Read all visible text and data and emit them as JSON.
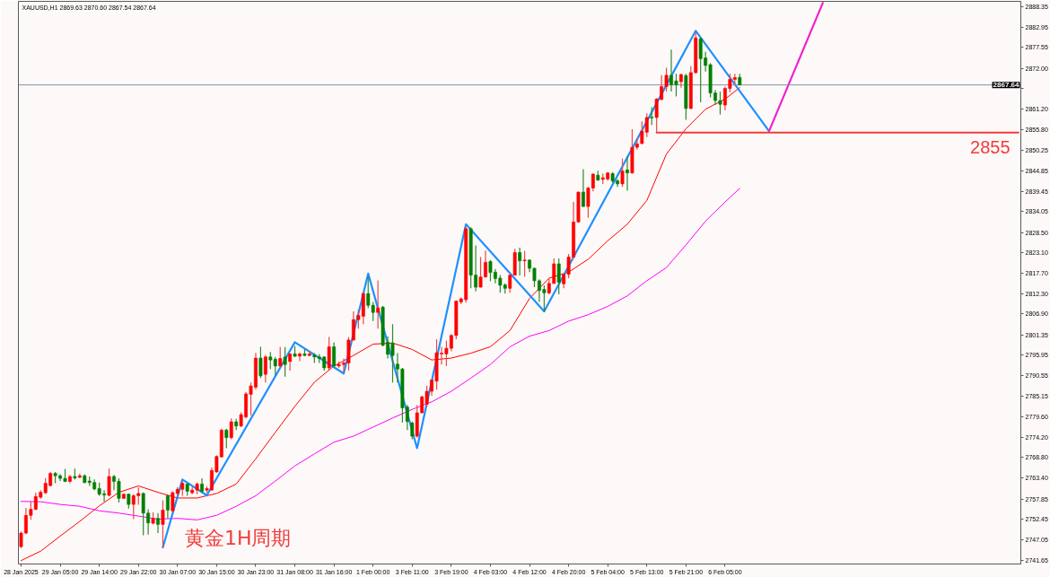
{
  "chart_data": {
    "type": "candlestick",
    "title": "XAUUSD,H1 2869.63 2870.60 2867.54 2867.64",
    "categories": [
      "28 Jan 2025",
      null,
      null,
      null,
      null,
      null,
      null,
      null,
      "29 Jan 05:00",
      null,
      null,
      null,
      null,
      null,
      null,
      null,
      "29 Jan 14:00",
      null,
      null,
      null,
      null,
      null,
      null,
      null,
      "29 Jan 22:00",
      null,
      null,
      null,
      null,
      null,
      null,
      null,
      "30 Jan 07:00",
      null,
      null,
      null,
      null,
      null,
      null,
      null,
      "30 Jan 15:00",
      null,
      null,
      null,
      null,
      null,
      null,
      null,
      "30 Jan 23:00",
      null,
      null,
      null,
      null,
      null,
      null,
      null,
      "31 Jan 08:00",
      null,
      null,
      null,
      null,
      null,
      null,
      null,
      "31 Jan 16:00",
      null,
      null,
      null,
      null,
      null,
      null,
      null,
      "1 Feb 00:00",
      null,
      null,
      null,
      null,
      null,
      null,
      null,
      "3 Feb 11:00",
      null,
      null,
      null,
      null,
      null,
      null,
      null,
      "3 Feb 19:00",
      null,
      null,
      null,
      null,
      null,
      null,
      null,
      "4 Feb 03:00",
      null,
      null,
      null,
      null,
      null,
      null,
      null,
      "4 Feb 12:00",
      null,
      null,
      null,
      null,
      null,
      null,
      null,
      "4 Feb 20:00",
      null,
      null,
      null,
      null,
      null,
      null,
      null,
      "5 Feb 04:00",
      null,
      null,
      null,
      null,
      null,
      null,
      null,
      "5 Feb 13:00",
      null,
      null,
      null,
      null,
      null,
      null,
      null,
      "5 Feb 21:00",
      null,
      null,
      null,
      null,
      null,
      null,
      null,
      "6 Feb 05:00",
      null,
      null,
      null,
      null,
      null,
      null,
      null,
      null,
      null,
      null,
      null,
      null,
      null,
      null,
      null,
      null,
      null,
      null,
      null,
      null,
      null,
      null,
      null,
      null,
      null,
      null,
      null,
      null,
      null,
      null,
      null,
      null,
      null,
      null,
      null,
      null,
      null,
      null,
      null,
      null,
      null,
      null,
      null,
      null,
      null,
      null,
      null,
      null,
      null,
      null,
      null,
      null,
      null,
      null,
      null,
      null,
      null,
      null,
      null,
      null
    ],
    "ohlc": [
      [
        2745.2,
        2749.2,
        2744.8,
        2748.8
      ],
      [
        2748.8,
        2755.5,
        2748.5,
        2753.5
      ],
      [
        2753.5,
        2757.1,
        2752.3,
        2755.1
      ],
      [
        2755.1,
        2759.5,
        2754.9,
        2758.5
      ],
      [
        2758.3,
        2760.2,
        2757.9,
        2759.6
      ],
      [
        2759.5,
        2763.4,
        2759.1,
        2762.0
      ],
      [
        2761.4,
        2765.0,
        2761.2,
        2764.6
      ],
      [
        2764.6,
        2765.0,
        2762.0,
        2764.0
      ],
      [
        2764.0,
        2764.4,
        2762.6,
        2763.3
      ],
      [
        2763.3,
        2765.8,
        2762.3,
        2762.5
      ],
      [
        2762.5,
        2764.2,
        2762.0,
        2763.8
      ],
      [
        2763.8,
        2765.9,
        2763.0,
        2763.4
      ],
      [
        2763.6,
        2764.6,
        2763.3,
        2764.0
      ],
      [
        2764.0,
        2764.4,
        2762.0,
        2762.2
      ],
      [
        2762.6,
        2763.8,
        2761.3,
        2762.2
      ],
      [
        2762.2,
        2763.0,
        2760.2,
        2760.5
      ],
      [
        2760.6,
        2762.2,
        2758.7,
        2759.1
      ],
      [
        2759.2,
        2760.2,
        2757.1,
        2758.9
      ],
      [
        2758.8,
        2765.9,
        2758.5,
        2763.8
      ],
      [
        2763.8,
        2764.2,
        2760.2,
        2762.5
      ],
      [
        2762.5,
        2763.3,
        2756.9,
        2758.0
      ],
      [
        2758.0,
        2759.3,
        2757.9,
        2759.1
      ],
      [
        2759.1,
        2759.3,
        2755.3,
        2756.4
      ],
      [
        2756.4,
        2759.1,
        2752.5,
        2758.7
      ],
      [
        2758.7,
        2760.9,
        2756.3,
        2759.3
      ],
      [
        2759.3,
        2759.6,
        2748.2,
        2754.1
      ],
      [
        2754.1,
        2755.1,
        2748.4,
        2751.5
      ],
      [
        2751.4,
        2754.3,
        2751.1,
        2752.7
      ],
      [
        2752.7,
        2754.1,
        2748.8,
        2751.1
      ],
      [
        2751.1,
        2757.5,
        2744.8,
        2754.9
      ],
      [
        2758.7,
        2758.8,
        2752.7,
        2754.9
      ],
      [
        2754.7,
        2759.9,
        2754.3,
        2759.5
      ],
      [
        2759.3,
        2761.0,
        2758.7,
        2760.4
      ],
      [
        2760.4,
        2762.6,
        2758.7,
        2762.0
      ],
      [
        2761.8,
        2762.0,
        2758.7,
        2759.9
      ],
      [
        2759.5,
        2761.0,
        2759.1,
        2760.2
      ],
      [
        2760.2,
        2762.2,
        2759.1,
        2761.8
      ],
      [
        2761.8,
        2763.3,
        2759.5,
        2759.9
      ],
      [
        2760.2,
        2761.2,
        2759.5,
        2760.6
      ],
      [
        2760.2,
        2766.2,
        2760.1,
        2765.4
      ],
      [
        2765.0,
        2769.4,
        2764.8,
        2769.1
      ],
      [
        2769.0,
        2776.5,
        2768.8,
        2776.1
      ],
      [
        2776.1,
        2776.4,
        2771.3,
        2774.1
      ],
      [
        2774.1,
        2779.2,
        2773.7,
        2778.3
      ],
      [
        2778.3,
        2779.1,
        2776.1,
        2777.2
      ],
      [
        2777.2,
        2780.8,
        2776.9,
        2780.2
      ],
      [
        2779.6,
        2786.2,
        2779.2,
        2785.7
      ],
      [
        2785.6,
        2788.7,
        2780.0,
        2787.8
      ],
      [
        2787.5,
        2796.6,
        2786.8,
        2795.2
      ],
      [
        2795.2,
        2798.2,
        2789.9,
        2790.5
      ],
      [
        2790.9,
        2795.9,
        2788.7,
        2795.5
      ],
      [
        2795.5,
        2796.8,
        2792.3,
        2794.7
      ],
      [
        2794.9,
        2795.5,
        2790.5,
        2793.1
      ],
      [
        2793.1,
        2798.1,
        2792.7,
        2795.1
      ],
      [
        2795.5,
        2798.1,
        2790.3,
        2793.5
      ],
      [
        2794.3,
        2796.5,
        2791.9,
        2796.3
      ],
      [
        2796.3,
        2798.4,
        2795.5,
        2795.7
      ],
      [
        2795.7,
        2796.7,
        2794.4,
        2796.3
      ],
      [
        2796.3,
        2797.6,
        2795.7,
        2795.9
      ],
      [
        2795.9,
        2797.1,
        2795.7,
        2796.3
      ],
      [
        2796.0,
        2796.5,
        2793.9,
        2795.5
      ],
      [
        2795.5,
        2796.3,
        2793.9,
        2795.1
      ],
      [
        2795.5,
        2795.7,
        2791.9,
        2792.6
      ],
      [
        2792.6,
        2800.8,
        2792.1,
        2798.2
      ],
      [
        2798.2,
        2799.4,
        2792.7,
        2793.1
      ],
      [
        2793.1,
        2794.3,
        2792.6,
        2793.5
      ],
      [
        2793.5,
        2795.1,
        2791.3,
        2793.9
      ],
      [
        2793.9,
        2800.8,
        2791.9,
        2800.0
      ],
      [
        2800.0,
        2807.6,
        2799.8,
        2805.4
      ],
      [
        2805.4,
        2808.1,
        2803.0,
        2806.5
      ],
      [
        2806.3,
        2812.6,
        2804.2,
        2812.3
      ],
      [
        2812.3,
        2816.8,
        2808.5,
        2809.2
      ],
      [
        2809.2,
        2810.1,
        2805.0,
        2807.3
      ],
      [
        2807.3,
        2815.8,
        2803.0,
        2808.5
      ],
      [
        2808.7,
        2809.0,
        2798.3,
        2798.6
      ],
      [
        2799.4,
        2801.0,
        2795.1,
        2796.2
      ],
      [
        2799.2,
        2804.2,
        2788.7,
        2795.9
      ],
      [
        2793.6,
        2796.5,
        2788.7,
        2792.3
      ],
      [
        2792.3,
        2792.6,
        2778.1,
        2782.0
      ],
      [
        2782.2,
        2782.8,
        2776.1,
        2778.4
      ],
      [
        2778.0,
        2778.4,
        2773.7,
        2774.5
      ],
      [
        2774.5,
        2782.8,
        2774.1,
        2780.7
      ],
      [
        2780.7,
        2785.2,
        2780.5,
        2784.9
      ],
      [
        2783.0,
        2787.9,
        2782.4,
        2786.4
      ],
      [
        2786.4,
        2789.5,
        2785.2,
        2789.4
      ],
      [
        2789.1,
        2800.2,
        2786.8,
        2796.6
      ],
      [
        2796.3,
        2798.2,
        2793.5,
        2796.5
      ],
      [
        2796.3,
        2799.8,
        2793.1,
        2797.8
      ],
      [
        2797.8,
        2801.6,
        2797.0,
        2801.2
      ],
      [
        2801.2,
        2810.5,
        2800.2,
        2810.3
      ],
      [
        2810.1,
        2811.3,
        2809.5,
        2810.9
      ],
      [
        2810.7,
        2829.9,
        2809.9,
        2829.5
      ],
      [
        2829.5,
        2829.9,
        2813.7,
        2817.2
      ],
      [
        2817.2,
        2825.1,
        2812.9,
        2814.0
      ],
      [
        2814.0,
        2822.0,
        2813.9,
        2816.7
      ],
      [
        2816.7,
        2823.7,
        2816.6,
        2820.6
      ],
      [
        2820.8,
        2821.2,
        2815.6,
        2817.9
      ],
      [
        2818.0,
        2818.8,
        2815.0,
        2816.3
      ],
      [
        2816.4,
        2817.2,
        2812.5,
        2814.5
      ],
      [
        2814.6,
        2815.0,
        2812.3,
        2813.7
      ],
      [
        2813.7,
        2817.4,
        2812.5,
        2817.2
      ],
      [
        2817.2,
        2824.2,
        2817.1,
        2823.2
      ],
      [
        2823.2,
        2824.5,
        2817.1,
        2821.0
      ],
      [
        2821.0,
        2823.6,
        2816.8,
        2821.2
      ],
      [
        2821.2,
        2821.3,
        2818.0,
        2819.0
      ],
      [
        2819.0,
        2819.2,
        2814.0,
        2815.7
      ],
      [
        2815.7,
        2816.1,
        2810.1,
        2813.1
      ],
      [
        2813.4,
        2814.5,
        2807.4,
        2812.5
      ],
      [
        2812.5,
        2816.4,
        2812.1,
        2815.0
      ],
      [
        2815.0,
        2821.6,
        2814.9,
        2820.2
      ],
      [
        2820.2,
        2821.6,
        2812.1,
        2815.3
      ],
      [
        2814.9,
        2817.6,
        2813.7,
        2817.4
      ],
      [
        2817.4,
        2822.8,
        2816.4,
        2822.0
      ],
      [
        2822.0,
        2836.6,
        2821.6,
        2831.3
      ],
      [
        2831.3,
        2839.4,
        2831.1,
        2839.2
      ],
      [
        2839.2,
        2845.3,
        2835.3,
        2835.4
      ],
      [
        2835.4,
        2840.6,
        2832.4,
        2840.3
      ],
      [
        2840.3,
        2844.2,
        2839.4,
        2844.0
      ],
      [
        2843.7,
        2844.9,
        2842.2,
        2842.4
      ],
      [
        2842.6,
        2844.1,
        2841.4,
        2843.0
      ],
      [
        2842.7,
        2844.5,
        2842.2,
        2844.3
      ],
      [
        2844.1,
        2844.5,
        2841.6,
        2842.2
      ],
      [
        2842.2,
        2842.6,
        2840.6,
        2841.4
      ],
      [
        2841.4,
        2848.1,
        2840.6,
        2844.8
      ],
      [
        2845.1,
        2848.7,
        2839.6,
        2844.3
      ],
      [
        2844.3,
        2855.9,
        2844.1,
        2851.1
      ],
      [
        2851.1,
        2853.5,
        2850.5,
        2852.0
      ],
      [
        2852.1,
        2858.0,
        2851.9,
        2855.4
      ],
      [
        2855.1,
        2860.1,
        2853.8,
        2859.0
      ],
      [
        2859.1,
        2861.7,
        2857.0,
        2858.9
      ],
      [
        2859.0,
        2864.1,
        2854.8,
        2863.9
      ],
      [
        2863.8,
        2870.2,
        2863.5,
        2867.2
      ],
      [
        2867.2,
        2872.2,
        2865.9,
        2870.2
      ],
      [
        2870.2,
        2877.0,
        2865.9,
        2867.7
      ],
      [
        2868.7,
        2870.6,
        2864.6,
        2867.7
      ],
      [
        2868.5,
        2870.6,
        2866.9,
        2870.4
      ],
      [
        2870.1,
        2870.6,
        2858.4,
        2861.4
      ],
      [
        2861.4,
        2872.6,
        2861.2,
        2870.9
      ],
      [
        2870.9,
        2881.7,
        2870.6,
        2880.1
      ],
      [
        2879.9,
        2880.1,
        2863.0,
        2874.6
      ],
      [
        2874.8,
        2876.4,
        2871.2,
        2872.8
      ],
      [
        2873.0,
        2873.4,
        2864.3,
        2865.5
      ],
      [
        2865.5,
        2866.3,
        2862.3,
        2863.5
      ],
      [
        2863.5,
        2865.9,
        2859.8,
        2862.5
      ],
      [
        2862.3,
        2867.2,
        2860.9,
        2866.7
      ],
      [
        2866.7,
        2870.6,
        2865.7,
        2869.1
      ],
      [
        2869.1,
        2870.6,
        2867.7,
        2869.6
      ],
      [
        2869.63,
        2870.6,
        2867.54,
        2867.64
      ],
      null,
      null,
      null,
      null,
      null,
      null,
      null,
      null,
      null,
      null,
      null,
      null,
      null,
      null,
      null,
      null,
      null,
      null,
      null,
      null,
      null,
      null,
      null,
      null,
      null,
      null,
      null,
      null,
      null,
      null,
      null,
      null,
      null,
      null,
      null,
      null,
      null,
      null,
      null,
      null,
      null,
      null,
      null,
      null,
      null,
      null,
      null,
      null,
      null,
      null,
      null,
      null,
      null,
      null,
      null,
      null,
      null
    ],
    "series": [
      {
        "type": "line",
        "color": "#ff0000",
        "values": [
          2741.5,
          null,
          null,
          null,
          2744.0,
          null,
          null,
          null,
          2748.0,
          null,
          null,
          null,
          2751.9,
          null,
          null,
          null,
          2756.0,
          null,
          null,
          null,
          2759.6,
          null,
          null,
          null,
          2761.3,
          null,
          null,
          null,
          2759.6,
          null,
          null,
          null,
          2758.1,
          null,
          null,
          null,
          2758.1,
          null,
          null,
          null,
          2759.3,
          null,
          null,
          null,
          2761.8,
          null,
          null,
          null,
          2768.5,
          null,
          null,
          null,
          2775.5,
          null,
          null,
          null,
          2782.4,
          null,
          null,
          null,
          2788.8,
          null,
          null,
          null,
          2793.1,
          null,
          null,
          null,
          2795.9,
          null,
          null,
          null,
          2798.9,
          null,
          null,
          null,
          2799.2,
          null,
          null,
          null,
          2797.5,
          null,
          null,
          null,
          2794.7,
          null,
          null,
          null,
          2795.2,
          null,
          null,
          null,
          2796.5,
          null,
          null,
          null,
          2798.2,
          null,
          null,
          null,
          2802.5,
          null,
          null,
          null,
          2811.0,
          null,
          null,
          null,
          2816.4,
          null,
          null,
          null,
          2818.0,
          null,
          null,
          null,
          2821.4,
          null,
          null,
          null,
          2826.3,
          null,
          null,
          null,
          2830.7,
          null,
          null,
          null,
          2837.0,
          null,
          null,
          null,
          2849.3,
          null,
          null,
          null,
          2856.0,
          null,
          null,
          null,
          2861.2,
          null,
          null,
          null,
          2863.9,
          null,
          null,
          2866.9,
          null,
          null,
          null,
          null,
          null,
          null,
          null,
          null,
          null,
          null,
          null,
          null,
          null,
          null,
          null,
          null,
          null,
          null,
          null,
          null,
          null,
          null,
          null,
          null,
          null,
          null,
          null,
          null,
          null,
          null,
          null,
          null,
          null,
          null,
          null,
          null,
          null,
          null,
          null,
          null,
          null,
          null,
          null,
          null,
          null,
          null,
          null,
          null,
          null,
          null,
          null,
          null,
          null,
          null,
          null,
          null,
          null
        ]
      },
      {
        "type": "line",
        "color": "#ff00ff",
        "values": [
          2757.2,
          null,
          null,
          null,
          2757.1,
          null,
          null,
          null,
          2756.4,
          null,
          null,
          null,
          2755.9,
          null,
          null,
          null,
          2754.7,
          null,
          null,
          null,
          2754.1,
          null,
          null,
          null,
          2753.3,
          null,
          null,
          null,
          2752.5,
          null,
          null,
          null,
          2752.7,
          null,
          null,
          null,
          2752.3,
          null,
          null,
          null,
          2753.5,
          null,
          null,
          null,
          2755.9,
          null,
          null,
          null,
          2758.7,
          null,
          null,
          null,
          2762.6,
          null,
          null,
          null,
          2766.6,
          null,
          null,
          null,
          2769.8,
          null,
          null,
          null,
          2772.9,
          null,
          null,
          null,
          2774.5,
          null,
          null,
          null,
          2776.9,
          null,
          null,
          null,
          2779.3,
          null,
          null,
          null,
          2781.6,
          null,
          null,
          null,
          2783.6,
          null,
          null,
          null,
          2786.4,
          null,
          null,
          null,
          2789.9,
          null,
          null,
          null,
          2793.5,
          null,
          null,
          null,
          2798.2,
          null,
          null,
          null,
          2801.0,
          null,
          null,
          null,
          2802.5,
          null,
          null,
          null,
          2805.0,
          null,
          null,
          null,
          2806.7,
          null,
          null,
          null,
          2808.9,
          null,
          null,
          null,
          2811.7,
          null,
          null,
          null,
          2815.7,
          null,
          null,
          null,
          2819.2,
          null,
          null,
          null,
          2825.2,
          null,
          null,
          null,
          2831.5,
          null,
          null,
          null,
          2836.6,
          null,
          null,
          2840.2,
          null,
          null,
          null,
          null,
          null,
          null,
          null,
          null,
          null,
          null,
          null,
          null,
          null,
          null,
          null,
          null,
          null,
          null,
          null,
          null,
          null,
          null,
          null,
          null,
          null,
          null,
          null,
          null,
          null,
          null,
          null,
          null,
          null,
          null,
          null,
          null,
          null,
          null,
          null,
          null,
          null,
          null,
          null,
          null,
          null,
          null,
          null,
          null,
          null,
          null,
          null,
          null,
          null,
          null,
          null,
          null,
          null
        ]
      },
      {
        "type": "line",
        "color": "#1e90ff",
        "values": [
          null,
          null,
          null,
          null,
          null,
          null,
          null,
          null,
          null,
          null,
          null,
          null,
          null,
          null,
          null,
          null,
          null,
          null,
          null,
          null,
          null,
          null,
          null,
          null,
          null,
          null,
          null,
          null,
          null,
          2745.0,
          null,
          null,
          null,
          2763.0,
          null,
          null,
          null,
          null,
          2758.8,
          null,
          null,
          null,
          null,
          null,
          null,
          null,
          null,
          null,
          null,
          null,
          null,
          null,
          null,
          null,
          null,
          null,
          2799.4,
          null,
          null,
          null,
          null,
          null,
          null,
          null,
          null,
          null,
          2791.1,
          null,
          null,
          null,
          null,
          2817.6,
          null,
          null,
          null,
          null,
          null,
          null,
          null,
          null,
          null,
          2771.3,
          null,
          null,
          null,
          null,
          null,
          null,
          null,
          null,
          null,
          2830.7,
          null,
          null,
          null,
          null,
          null,
          null,
          null,
          null,
          null,
          null,
          null,
          null,
          null,
          null,
          null,
          2807.6,
          null,
          null,
          null,
          null,
          null,
          null,
          null,
          null,
          null,
          null,
          null,
          null,
          null,
          null,
          null,
          null,
          null,
          null,
          null,
          null,
          null,
          null,
          null,
          null,
          null,
          null,
          null,
          null,
          null,
          null,
          2882.0,
          null,
          null,
          null,
          null,
          null,
          null,
          null,
          null,
          null,
          null,
          null,
          null,
          null,
          null,
          2855.4,
          null,
          null,
          null,
          null,
          null,
          null,
          null,
          null,
          null,
          null,
          null,
          null,
          null,
          null,
          null,
          null,
          null,
          null,
          null,
          null,
          null,
          null,
          null,
          null,
          null,
          null,
          null,
          null,
          null,
          null,
          null,
          null,
          null,
          null,
          null,
          null,
          null,
          null,
          null,
          null,
          null,
          null,
          null,
          null,
          null,
          null,
          null,
          null,
          null,
          null,
          null
        ]
      },
      {
        "type": "line",
        "color": "#f020d0",
        "values": [
          null,
          null,
          null,
          null,
          null,
          null,
          null,
          null,
          null,
          null,
          null,
          null,
          null,
          null,
          null,
          null,
          null,
          null,
          null,
          null,
          null,
          null,
          null,
          null,
          null,
          null,
          null,
          null,
          null,
          null,
          null,
          null,
          null,
          null,
          null,
          null,
          null,
          null,
          null,
          null,
          null,
          null,
          null,
          null,
          null,
          null,
          null,
          null,
          null,
          null,
          null,
          null,
          null,
          null,
          null,
          null,
          null,
          null,
          null,
          null,
          null,
          null,
          null,
          null,
          null,
          null,
          null,
          null,
          null,
          null,
          null,
          null,
          null,
          null,
          null,
          null,
          null,
          null,
          null,
          null,
          null,
          null,
          null,
          null,
          null,
          null,
          null,
          null,
          null,
          null,
          null,
          null,
          null,
          null,
          null,
          null,
          null,
          null,
          null,
          null,
          null,
          null,
          null,
          null,
          null,
          null,
          null,
          null,
          null,
          null,
          null,
          null,
          null,
          null,
          null,
          null,
          null,
          null,
          null,
          null,
          null,
          null,
          null,
          null,
          null,
          null,
          null,
          null,
          null,
          null,
          null,
          null,
          null,
          null,
          null,
          null,
          null,
          null,
          null,
          null,
          null,
          null,
          null,
          null,
          null,
          null,
          null,
          null,
          null,
          null,
          null,
          null,
          null,
          2855.4,
          null,
          null,
          null,
          null,
          null,
          null,
          null,
          null,
          null,
          null,
          2889.4,
          null,
          null,
          null,
          null,
          null,
          null,
          null,
          null,
          null,
          null,
          null,
          null,
          null,
          null,
          null,
          null,
          null,
          null,
          null,
          null,
          null,
          null,
          null,
          null,
          null,
          null,
          null,
          null,
          null,
          null,
          null,
          null,
          null,
          null,
          null,
          null,
          null,
          null,
          null,
          null
        ]
      },
      {
        "type": "line",
        "color": "#f23c3c",
        "values": [
          null,
          null,
          null,
          null,
          null,
          null,
          null,
          null,
          null,
          null,
          null,
          null,
          null,
          null,
          null,
          null,
          null,
          null,
          null,
          null,
          null,
          null,
          null,
          null,
          null,
          null,
          null,
          null,
          null,
          null,
          null,
          null,
          null,
          null,
          null,
          null,
          null,
          null,
          null,
          null,
          null,
          null,
          null,
          null,
          null,
          null,
          null,
          null,
          null,
          null,
          null,
          null,
          null,
          null,
          null,
          null,
          null,
          null,
          null,
          null,
          null,
          null,
          null,
          null,
          null,
          null,
          null,
          null,
          null,
          null,
          null,
          null,
          null,
          null,
          null,
          null,
          null,
          null,
          null,
          null,
          null,
          null,
          null,
          null,
          null,
          null,
          null,
          null,
          null,
          null,
          null,
          null,
          null,
          null,
          null,
          null,
          null,
          null,
          null,
          null,
          null,
          null,
          null,
          null,
          null,
          null,
          null,
          null,
          null,
          null,
          null,
          null,
          null,
          null,
          null,
          null,
          null,
          null,
          null,
          null,
          null,
          null,
          null,
          null,
          null,
          null,
          null,
          null,
          null,
          null,
          2855,
          null,
          null,
          null,
          null,
          null,
          null,
          null,
          null,
          null,
          null,
          null,
          null,
          null,
          null,
          null,
          null,
          null,
          null,
          null,
          null,
          null,
          null,
          null,
          null,
          null,
          null,
          null,
          null,
          null,
          null,
          null,
          null,
          null,
          null,
          null,
          null,
          null,
          null,
          null,
          null,
          null,
          null,
          null,
          null,
          null,
          null,
          null,
          null,
          null,
          null,
          null,
          null,
          null,
          null,
          null,
          null,
          null,
          null,
          null,
          null,
          null,
          null,
          null,
          null,
          null,
          null,
          null,
          null,
          null,
          null,
          null,
          null,
          null,
          2855
        ]
      }
    ],
    "ylim": [
      2740.6,
      2889.8
    ],
    "yticks": [
      2888.35,
      2882.95,
      2877.55,
      {
        "value": 2872,
        "label": "2872.00"
      },
      {
        "value": 2866.6,
        "label": null
      },
      {
        "value": 2861.2,
        "label": "2861.20"
      },
      {
        "value": 2855.8,
        "label": "2855.80"
      },
      2850.25,
      2844.85,
      2839.45,
      2834.05,
      {
        "value": 2828.5,
        "label": "2828.50"
      },
      {
        "value": 2823.1,
        "label": "2823.10"
      },
      {
        "value": 2817.7,
        "label": "2817.70"
      },
      {
        "value": 2812.3,
        "label": "2812.30"
      },
      {
        "value": 2806.9,
        "label": "2806.90"
      },
      2801.35,
      2795.95,
      2790.55,
      2785.15,
      {
        "value": 2779.6,
        "label": "2779.60"
      },
      {
        "value": 2774.2,
        "label": "2774.20"
      },
      {
        "value": 2768.8,
        "label": "2768.80"
      },
      {
        "value": 2763.4,
        "label": "2763.40"
      },
      2757.85,
      2752.45,
      2747.05,
      2741.65
    ],
    "ref_lines": [
      {
        "axis": "y",
        "value": 2867.64,
        "label": "2867.64",
        "color": "#8093a6"
      }
    ],
    "annotations": [
      "黄金1H周期",
      {
        "text": "2855",
        "y": 2855
      }
    ]
  }
}
